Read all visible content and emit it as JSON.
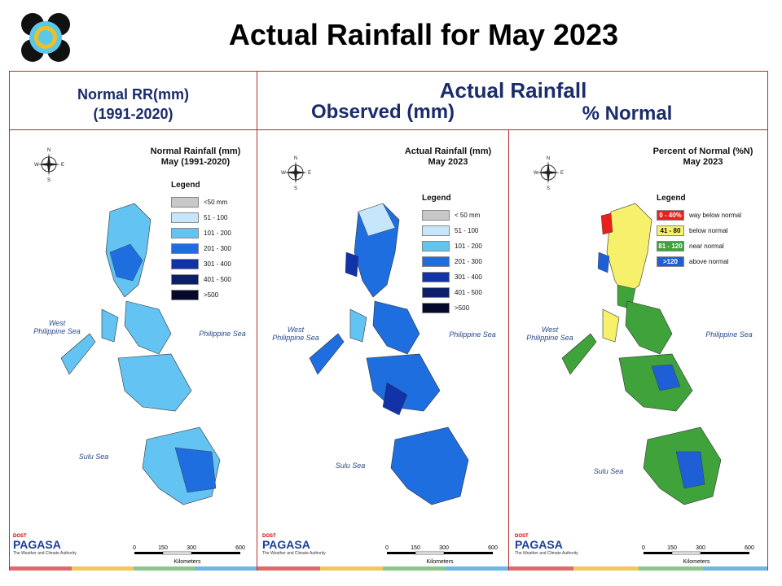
{
  "title": "Actual Rainfall for May 2023",
  "headers": {
    "left_line1": "Normal RR(mm)",
    "left_line2": "(1991-2020)",
    "right_top": "Actual Rainfall",
    "right_observed": "Observed (mm)",
    "right_percent": "% Normal"
  },
  "maps": [
    {
      "title_line1": "Normal Rainfall (mm)",
      "title_line2": "May (1991-2020)",
      "legend_title": "Legend",
      "legend": [
        {
          "label": "<50 mm",
          "color": "#c8c8c8"
        },
        {
          "label": "51 - 100",
          "color": "#c6e7fb"
        },
        {
          "label": "101 - 200",
          "color": "#63c3f2"
        },
        {
          "label": "201 - 300",
          "color": "#1e6ee0"
        },
        {
          "label": "301 - 400",
          "color": "#1233a8"
        },
        {
          "label": "401 - 500",
          "color": "#0c1f6b"
        },
        {
          "label": ">500",
          "color": "#050a2a"
        }
      ]
    },
    {
      "title_line1": "Actual Rainfall (mm)",
      "title_line2": "May 2023",
      "legend_title": "Legend",
      "legend": [
        {
          "label": "< 50 mm",
          "color": "#c8c8c8"
        },
        {
          "label": "51 - 100",
          "color": "#c6e7fb"
        },
        {
          "label": "101 - 200",
          "color": "#63c3f2"
        },
        {
          "label": "201 - 300",
          "color": "#1e6ee0"
        },
        {
          "label": "301 - 400",
          "color": "#1233a8"
        },
        {
          "label": "401 - 500",
          "color": "#0c1f6b"
        },
        {
          "label": ">500",
          "color": "#050a2a"
        }
      ]
    },
    {
      "title_line1": "Percent of Normal (%N)",
      "title_line2": "May 2023",
      "legend_title": "Legend",
      "legend": [
        {
          "swatch": "0 - 40%",
          "label": "way below normal",
          "color": "#e8201c"
        },
        {
          "swatch": "41 - 80",
          "label": "below normal",
          "color": "#f6f06a"
        },
        {
          "swatch": "81 - 120",
          "label": "near normal",
          "color": "#3fa23a"
        },
        {
          "swatch": ">120",
          "label": "above normal",
          "color": "#1f5fd6"
        }
      ]
    }
  ],
  "seas": {
    "west_line1": "West",
    "west_line2": "Philippine Sea",
    "east": "Philippine Sea",
    "sulu": "Sulu Sea"
  },
  "compass": {
    "n": "N",
    "s": "S",
    "e": "E",
    "w": "W"
  },
  "scale": {
    "t0": "0",
    "t1": "150",
    "t2": "300",
    "t3": "600",
    "unit": "Kilometers"
  },
  "pagasa": {
    "dost": "DOST",
    "name": "PAGASA",
    "tagline": "The Weather and Climate Authority"
  },
  "colors": {
    "frame": "#c0282d",
    "header_blue": "#1a2c6b",
    "bar": [
      "#e06a6a",
      "#f0c95a",
      "#8cc58a",
      "#6bb8e6"
    ]
  }
}
